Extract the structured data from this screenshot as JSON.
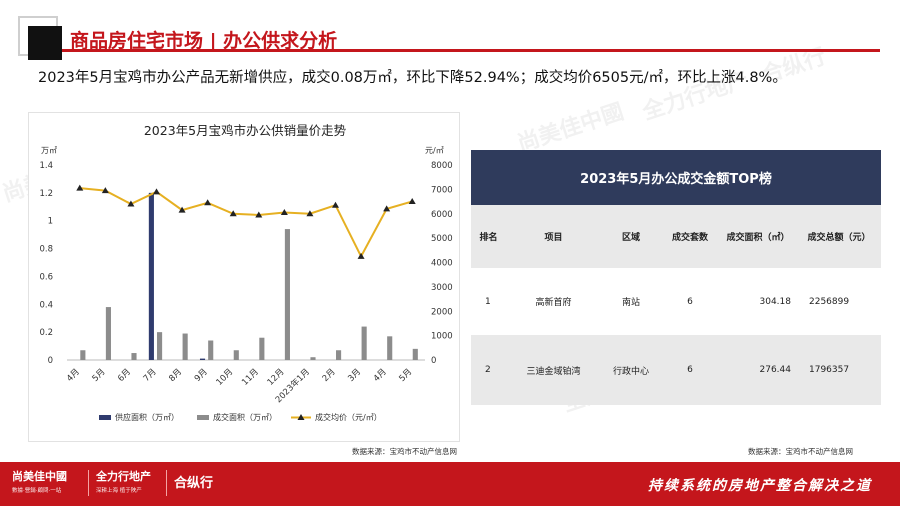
{
  "header": {
    "title": "商品房住宅市场 | 办公供求分析",
    "summary": "2023年5月宝鸡市办公产品无新增供应，成交0.08万㎡，环比下降52.94%；成交均价6505元/㎡，环比上涨4.8%。"
  },
  "chart_data": {
    "type": "bar",
    "title": "2023年5月宝鸡市办公供销量价走势",
    "y_left_unit": "万㎡",
    "y_right_unit": "元/㎡",
    "ylim_left": [
      0,
      1.4
    ],
    "ylim_right": [
      0,
      8000
    ],
    "y_left_ticks": [
      "1.4",
      "1.2",
      "1",
      "0.8",
      "0.6",
      "0.4",
      "0.2",
      "0"
    ],
    "y_right_ticks": [
      "8000",
      "7000",
      "6000",
      "5000",
      "4000",
      "3000",
      "2000",
      "1000",
      "0"
    ],
    "categories": [
      "4月",
      "5月",
      "6月",
      "7月",
      "8月",
      "9月",
      "10月",
      "11月",
      "12月",
      "2023年1月",
      "2月",
      "3月",
      "4月",
      "5月"
    ],
    "series": [
      {
        "name": "供应面积（万㎡）",
        "type": "bar",
        "color": "#2f3b6e",
        "values": [
          0,
          0,
          0,
          1.2,
          0,
          0.01,
          0,
          0,
          0,
          0,
          0,
          0,
          0,
          0
        ]
      },
      {
        "name": "成交面积（万㎡）",
        "type": "bar",
        "color": "#8c8c8c",
        "values": [
          0.07,
          0.38,
          0.05,
          0.2,
          0.19,
          0.14,
          0.07,
          0.16,
          0.94,
          0.02,
          0.07,
          0.24,
          0.17,
          0.08
        ]
      },
      {
        "name": "成交均价（元/㎡）",
        "type": "line",
        "color": "#e6b022",
        "axis": "right",
        "values": [
          7050,
          6950,
          6400,
          6900,
          6150,
          6450,
          6000,
          5950,
          6050,
          6000,
          6350,
          4250,
          6200,
          6505
        ]
      }
    ],
    "source": "数据来源：宝鸡市不动产信息网"
  },
  "table": {
    "title": "2023年5月办公成交金额TOP榜",
    "headers": [
      "排名",
      "项目",
      "区域",
      "成交套数",
      "成交面积（㎡）",
      "成交总额（元）"
    ],
    "rows": [
      [
        "1",
        "高新首府",
        "南站",
        "6",
        "304.18",
        "2256899"
      ],
      [
        "2",
        "三迪金域铂湾",
        "行政中心",
        "6",
        "276.44",
        "1796357"
      ]
    ],
    "source": "数据来源：宝鸡市不动产信息网"
  },
  "footer": {
    "brand1": "尚美佳中國",
    "brand1_sub": "數據·營銷·顧問·一站",
    "brand2": "全力行地产",
    "brand2_sub": "深耕上海 植于陕产",
    "brand3": "合纵行",
    "slogan": "持续系统的房地产整合解决之道"
  },
  "watermarks": [
    "尚美佳中國",
    "全力行地产",
    "合纵行"
  ]
}
